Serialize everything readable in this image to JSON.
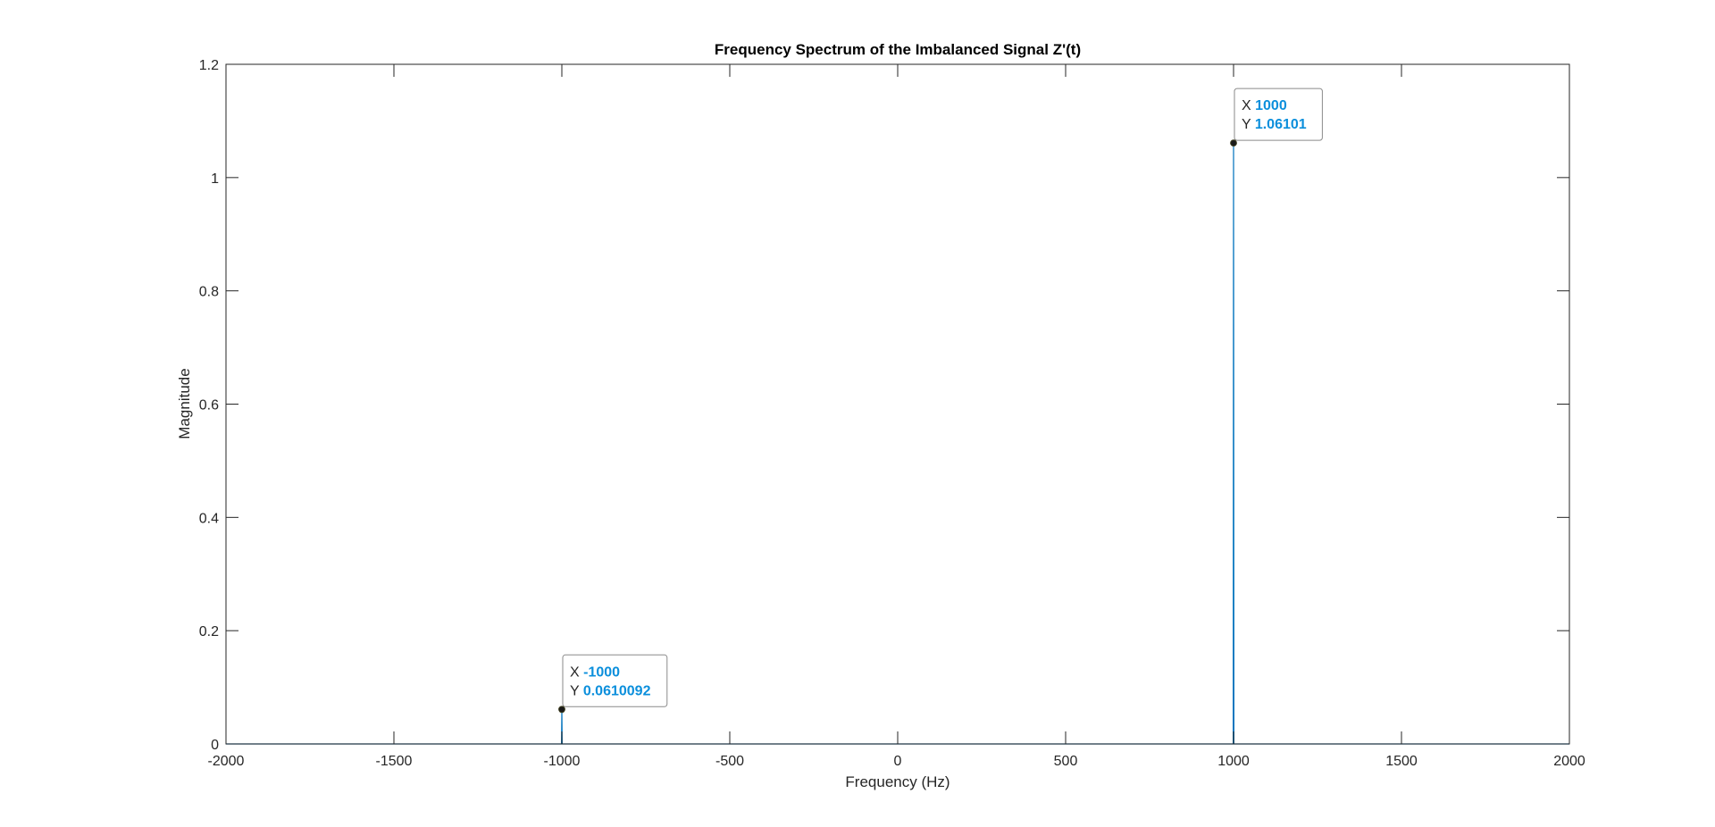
{
  "colors": {
    "series": "#0072bd",
    "axis": "#262626",
    "tip_value": "#0b8fdc",
    "tip_border": "#8a8a8a",
    "tip_background": "#ffffff"
  },
  "chart_data": {
    "type": "line",
    "title": "Frequency Spectrum of the Imbalanced Signal Z'(t)",
    "xlabel": "Frequency (Hz)",
    "ylabel": "Magnitude",
    "xlim": [
      -2000,
      2000
    ],
    "ylim": [
      0,
      1.2
    ],
    "xticks": [
      -2000,
      -1500,
      -1000,
      -500,
      0,
      500,
      1000,
      1500,
      2000
    ],
    "xtick_labels": [
      "-2000",
      "-1500",
      "-1000",
      "-500",
      "0",
      "500",
      "1000",
      "1500",
      "2000"
    ],
    "yticks": [
      0,
      0.2,
      0.4,
      0.6,
      0.8,
      1,
      1.2
    ],
    "ytick_labels": [
      "0",
      "0.2",
      "0.4",
      "0.6",
      "0.8",
      "1",
      "1.2"
    ],
    "grid": false,
    "series": [
      {
        "x": [
          -2000,
          -1001,
          -1000,
          -999,
          999,
          1000,
          1001,
          2000
        ],
        "y": [
          0,
          0,
          0.0610092,
          0,
          0,
          1.06101,
          0,
          0
        ]
      }
    ],
    "datatips": [
      {
        "x": -1000,
        "y": 0.0610092,
        "x_key": "X",
        "y_key": "Y",
        "x_text": "-1000",
        "y_text": "0.0610092"
      },
      {
        "x": 1000,
        "y": 1.06101,
        "x_key": "X",
        "y_key": "Y",
        "x_text": "1000",
        "y_text": "1.06101"
      }
    ]
  }
}
